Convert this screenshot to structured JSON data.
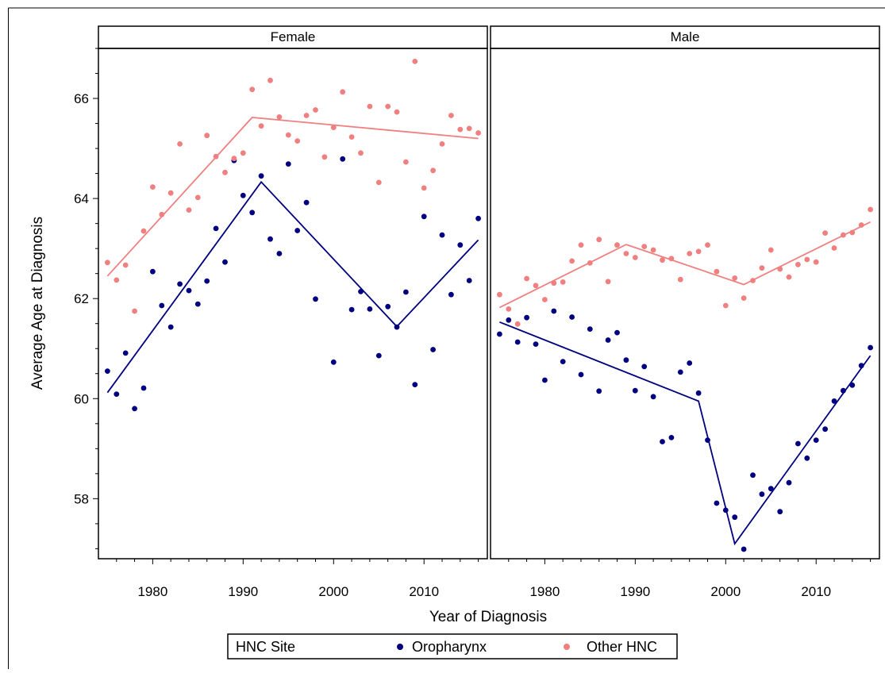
{
  "chart_data": {
    "type": "scatter",
    "panels": [
      "Female",
      "Male"
    ],
    "xlabel": "Year of Diagnosis",
    "ylabel": "Average Age at Diagnosis",
    "xlim": [
      1974,
      2017
    ],
    "ylim": [
      56.8,
      67.0
    ],
    "xticks": [
      1980,
      1990,
      2000,
      2010
    ],
    "yticks": [
      58,
      60,
      62,
      64,
      66
    ],
    "legend": {
      "title": "HNC Site",
      "placement": "bottom",
      "entries": [
        "Oropharynx",
        "Other HNC"
      ]
    },
    "colors": {
      "Oropharynx": "#000080",
      "Other HNC": "#F08080"
    },
    "grid": false,
    "series": [
      {
        "name": "Oropharynx",
        "panel": "Female",
        "x": [
          1975,
          1976,
          1977,
          1978,
          1979,
          1980,
          1981,
          1982,
          1983,
          1984,
          1985,
          1986,
          1987,
          1988,
          1989,
          1990,
          1991,
          1992,
          1993,
          1994,
          1995,
          1996,
          1997,
          1998,
          2000,
          2001,
          2002,
          2003,
          2004,
          2005,
          2006,
          2007,
          2008,
          2009,
          2010,
          2011,
          2012,
          2013,
          2014,
          2015,
          2016
        ],
        "y": [
          60.55,
          60.09,
          60.91,
          59.8,
          60.21,
          62.54,
          61.86,
          61.43,
          62.29,
          62.16,
          61.89,
          62.35,
          63.4,
          62.73,
          64.76,
          64.06,
          63.72,
          64.45,
          63.19,
          62.9,
          64.69,
          63.36,
          63.92,
          61.99,
          60.73,
          64.79,
          61.78,
          62.14,
          61.79,
          60.86,
          61.84,
          61.43,
          62.13,
          60.28,
          63.64,
          60.98,
          63.27,
          62.08,
          63.07,
          62.36,
          63.6
        ]
      },
      {
        "name": "Other HNC",
        "panel": "Female",
        "x": [
          1975,
          1976,
          1977,
          1978,
          1979,
          1980,
          1981,
          1982,
          1983,
          1984,
          1985,
          1986,
          1987,
          1988,
          1989,
          1990,
          1991,
          1992,
          1993,
          1994,
          1995,
          1996,
          1997,
          1998,
          1999,
          2000,
          2001,
          2002,
          2003,
          2004,
          2005,
          2006,
          2007,
          2008,
          2009,
          2010,
          2011,
          2012,
          2013,
          2014,
          2015,
          2016
        ],
        "y": [
          62.72,
          62.37,
          62.67,
          61.75,
          63.35,
          64.23,
          63.68,
          64.11,
          65.09,
          63.77,
          64.02,
          65.26,
          64.84,
          64.52,
          64.8,
          64.91,
          66.18,
          65.45,
          66.36,
          65.63,
          65.27,
          65.15,
          65.66,
          65.77,
          64.83,
          65.42,
          66.13,
          65.23,
          64.91,
          65.84,
          64.32,
          65.84,
          65.73,
          64.73,
          66.74,
          64.21,
          64.56,
          65.09,
          65.66,
          65.38,
          65.4,
          65.31
        ]
      },
      {
        "name": "Oropharynx",
        "panel": "Male",
        "x": [
          1975,
          1976,
          1977,
          1978,
          1979,
          1980,
          1981,
          1982,
          1983,
          1984,
          1985,
          1986,
          1987,
          1988,
          1989,
          1990,
          1991,
          1992,
          1993,
          1994,
          1995,
          1996,
          1997,
          1998,
          1999,
          2000,
          2001,
          2002,
          2003,
          2004,
          2005,
          2006,
          2007,
          2008,
          2009,
          2010,
          2011,
          2012,
          2013,
          2014,
          2015,
          2016
        ],
        "y": [
          61.29,
          61.57,
          61.13,
          61.62,
          61.09,
          60.37,
          61.75,
          60.74,
          61.63,
          60.48,
          61.39,
          60.15,
          61.17,
          61.32,
          60.77,
          60.16,
          60.64,
          60.04,
          59.14,
          59.22,
          60.53,
          60.71,
          60.11,
          59.17,
          57.91,
          57.77,
          57.63,
          56.99,
          58.47,
          58.09,
          58.2,
          57.74,
          58.32,
          59.1,
          58.81,
          59.17,
          59.39,
          59.95,
          60.16,
          60.27,
          60.66,
          61.02
        ]
      },
      {
        "name": "Other HNC",
        "panel": "Male",
        "x": [
          1975,
          1976,
          1977,
          1978,
          1979,
          1980,
          1981,
          1982,
          1983,
          1984,
          1985,
          1986,
          1987,
          1988,
          1989,
          1990,
          1991,
          1992,
          1993,
          1994,
          1995,
          1996,
          1997,
          1998,
          1999,
          2000,
          2001,
          2002,
          2003,
          2004,
          2005,
          2006,
          2007,
          2008,
          2009,
          2010,
          2011,
          2012,
          2013,
          2014,
          2015,
          2016
        ],
        "y": [
          62.08,
          61.79,
          61.49,
          62.4,
          62.26,
          61.98,
          62.31,
          62.33,
          62.75,
          63.07,
          62.71,
          63.18,
          62.34,
          63.07,
          62.9,
          62.82,
          63.04,
          62.97,
          62.77,
          62.8,
          62.38,
          62.9,
          62.94,
          63.07,
          62.54,
          61.86,
          62.41,
          62.01,
          62.36,
          62.61,
          62.97,
          62.59,
          62.43,
          62.68,
          62.78,
          62.73,
          63.31,
          63.01,
          63.27,
          63.32,
          63.47,
          63.78
        ]
      }
    ],
    "fitted_lines": [
      {
        "name": "Oropharynx",
        "panel": "Female",
        "x": [
          1975,
          1992,
          2007,
          2016
        ],
        "y": [
          60.12,
          64.33,
          61.44,
          63.17
        ]
      },
      {
        "name": "Other HNC",
        "panel": "Female",
        "x": [
          1975,
          1991,
          2016
        ],
        "y": [
          62.45,
          65.62,
          65.2
        ]
      },
      {
        "name": "Oropharynx",
        "panel": "Male",
        "x": [
          1975,
          1997,
          2001,
          2016
        ],
        "y": [
          61.53,
          59.95,
          57.1,
          60.86
        ]
      },
      {
        "name": "Other HNC",
        "panel": "Male",
        "x": [
          1975,
          1989,
          2002,
          2016
        ],
        "y": [
          61.82,
          63.08,
          62.28,
          63.53
        ]
      }
    ]
  }
}
